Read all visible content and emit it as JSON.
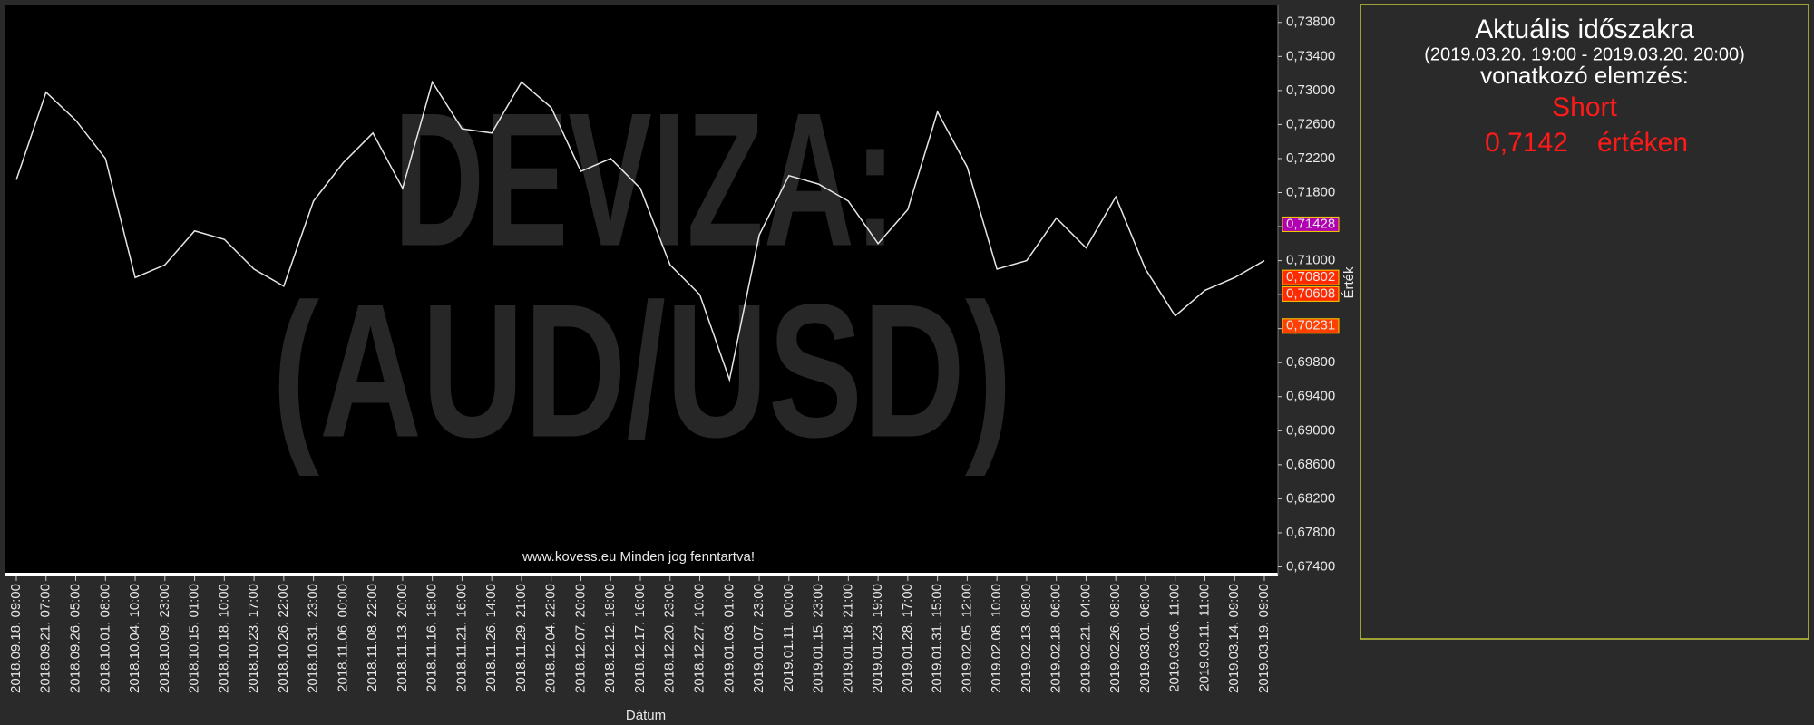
{
  "chart_data": {
    "type": "line",
    "watermark": [
      "DEVIZA:",
      "(AUD/USD)"
    ],
    "footer": "www.kovess.eu Minden jog fenntartva!",
    "x_label": "Dátum",
    "y_label": "Érték",
    "color": "#e6e6e6",
    "categories": [
      "2018.09.18. 09:00",
      "2018.09.21. 07:00",
      "2018.09.26. 05:00",
      "2018.10.01. 08:00",
      "2018.10.04. 10:00",
      "2018.10.09. 23:00",
      "2018.10.15. 01:00",
      "2018.10.18. 10:00",
      "2018.10.23. 17:00",
      "2018.10.26. 22:00",
      "2018.10.31. 23:00",
      "2018.11.06. 00:00",
      "2018.11.08. 22:00",
      "2018.11.13. 20:00",
      "2018.11.16. 18:00",
      "2018.11.21. 16:00",
      "2018.11.26. 14:00",
      "2018.11.29. 21:00",
      "2018.12.04. 22:00",
      "2018.12.07. 20:00",
      "2018.12.12. 18:00",
      "2018.12.17. 16:00",
      "2018.12.20. 23:00",
      "2018.12.27. 10:00",
      "2019.01.03. 01:00",
      "2019.01.07. 23:00",
      "2019.01.11. 00:00",
      "2019.01.15. 23:00",
      "2019.01.18. 21:00",
      "2019.01.23. 19:00",
      "2019.01.28. 17:00",
      "2019.01.31. 15:00",
      "2019.02.05. 12:00",
      "2019.02.08. 10:00",
      "2019.02.13. 08:00",
      "2019.02.18. 06:00",
      "2019.02.21. 04:00",
      "2019.02.26. 08:00",
      "2019.03.01. 06:00",
      "2019.03.06. 11:00",
      "2019.03.11. 11:00",
      "2019.03.14. 09:00",
      "2019.03.19. 09:00"
    ],
    "values": [
      0.7195,
      0.7298,
      0.7265,
      0.722,
      0.708,
      0.7095,
      0.7135,
      0.7125,
      0.709,
      0.707,
      0.717,
      0.7215,
      0.725,
      0.7185,
      0.731,
      0.7255,
      0.725,
      0.731,
      0.728,
      0.7205,
      0.722,
      0.7185,
      0.7095,
      0.706,
      0.696,
      0.713,
      0.72,
      0.719,
      0.717,
      0.712,
      0.716,
      0.7275,
      0.721,
      0.709,
      0.71,
      0.715,
      0.7115,
      0.7175,
      0.709,
      0.7035,
      0.7065,
      0.708,
      0.71
    ],
    "ylim": [
      0.6732,
      0.74
    ],
    "yticks": [
      {
        "value": 0.674,
        "label": "0,67400"
      },
      {
        "value": 0.678,
        "label": "0,67800"
      },
      {
        "value": 0.682,
        "label": "0,68200"
      },
      {
        "value": 0.686,
        "label": "0,68600"
      },
      {
        "value": 0.69,
        "label": "0,69000"
      },
      {
        "value": 0.694,
        "label": "0,69400"
      },
      {
        "value": 0.698,
        "label": "0,69800"
      },
      {
        "value": 0.702,
        "label": "0,70200"
      },
      {
        "value": 0.706,
        "label": "0,70600"
      },
      {
        "value": 0.71,
        "label": "0,71000"
      },
      {
        "value": 0.714,
        "label": "0,71400"
      },
      {
        "value": 0.718,
        "label": "0,71800"
      },
      {
        "value": 0.722,
        "label": "0,72200"
      },
      {
        "value": 0.726,
        "label": "0,72600"
      },
      {
        "value": 0.73,
        "label": "0,73000"
      },
      {
        "value": 0.734,
        "label": "0,73400"
      },
      {
        "value": 0.738,
        "label": "0,73800"
      }
    ],
    "markers": [
      {
        "value": 0.71428,
        "label": "0,71428",
        "color": "#b000b0"
      },
      {
        "value": 0.70802,
        "label": "0,70802",
        "color": "#ff2a00"
      },
      {
        "value": 0.70608,
        "label": "0,70608",
        "color": "#ff2a00"
      },
      {
        "value": 0.70231,
        "label": "0,70231",
        "color": "#ff4000"
      }
    ]
  },
  "panel": {
    "title": "Aktuális időszakra",
    "period": "(2019.03.20. 19:00 - 2019.03.20. 20:00)",
    "subtitle": "vonatkozó elemzés:",
    "signal": "Short",
    "price": "0,7142",
    "suffix": "értéken"
  }
}
